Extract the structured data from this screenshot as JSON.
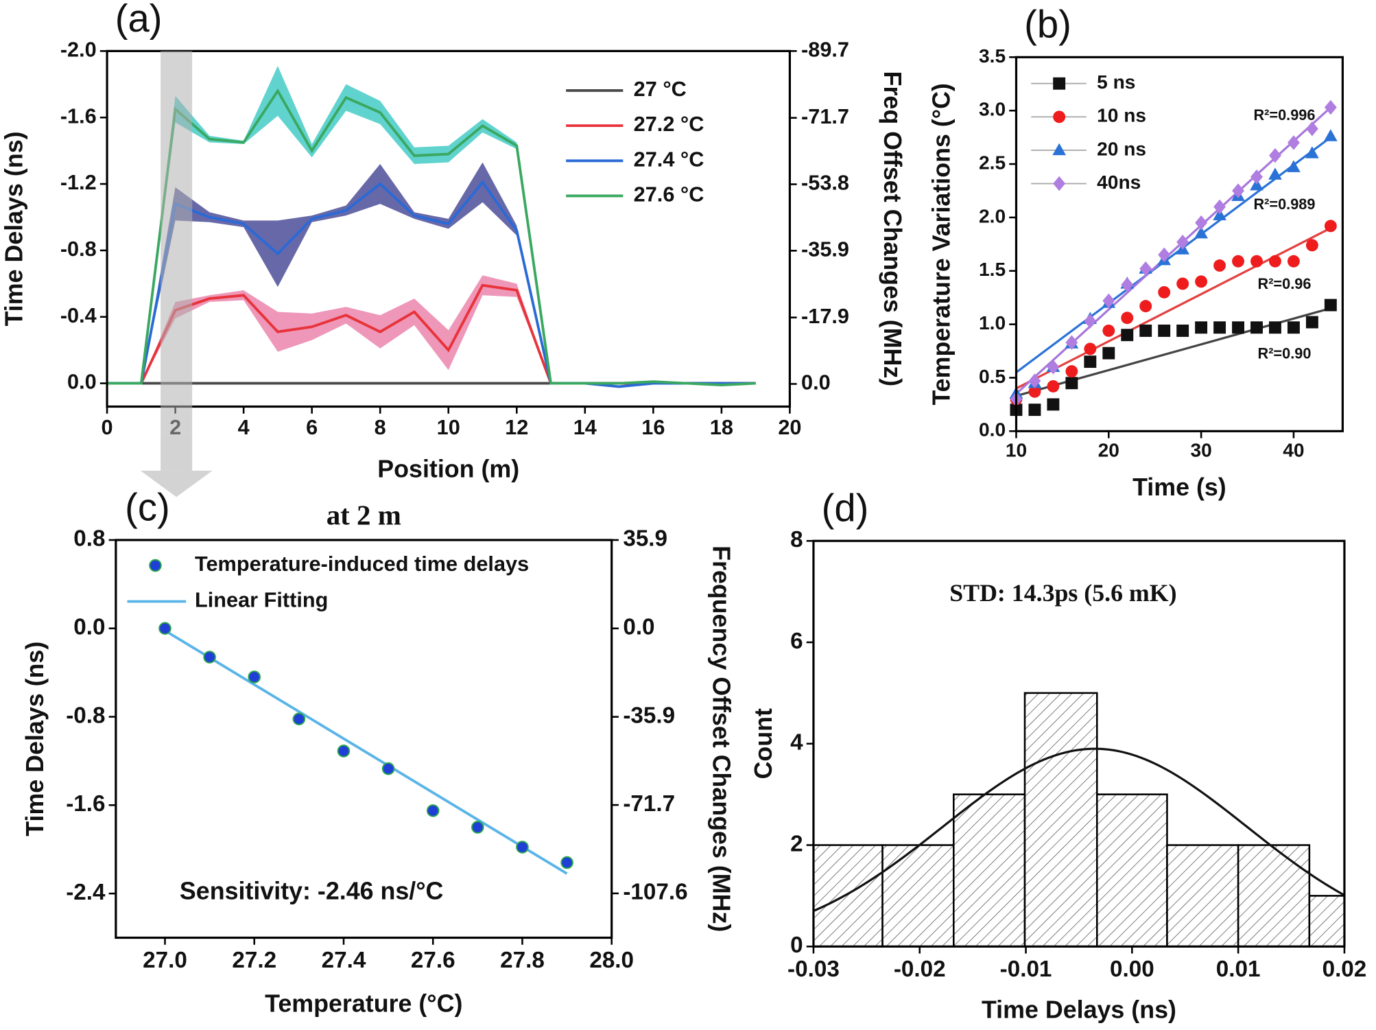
{
  "chart_data": [
    {
      "type": "line",
      "panel_label": "(a)",
      "xlabel": "Position (m)",
      "ylabel": "Time Delays (ns)",
      "y2label": "Freq Offset Changes (MHz)",
      "x": [
        0,
        1,
        2,
        3,
        4,
        5,
        6,
        7,
        8,
        9,
        10,
        11,
        12,
        13,
        14,
        15,
        16,
        17,
        18,
        19
      ],
      "series": [
        {
          "name": "27 °C",
          "color": "#4a4a4a",
          "band_color": "#9a9a9a",
          "values": [
            0,
            0,
            0,
            0,
            0,
            0,
            0,
            0,
            0,
            0,
            0,
            0,
            0,
            0,
            0,
            0,
            0,
            0,
            0,
            0
          ],
          "errors": [
            0,
            0,
            0,
            0,
            0,
            0,
            0,
            0,
            0,
            0,
            0,
            0,
            0,
            0,
            0,
            0,
            0,
            0,
            0,
            0
          ]
        },
        {
          "name": "27.2 °C",
          "color": "#e8333a",
          "band_color": "#e874a2",
          "values": [
            0,
            0,
            -0.44,
            -0.51,
            -0.53,
            -0.31,
            -0.34,
            -0.41,
            -0.31,
            -0.43,
            -0.2,
            -0.59,
            -0.56,
            0,
            0,
            0,
            0,
            0,
            0,
            0
          ],
          "errors": [
            0,
            0,
            0.05,
            0.02,
            0.03,
            0.12,
            0.08,
            0.05,
            0.1,
            0.08,
            0.12,
            0.06,
            0.04,
            0,
            0,
            0,
            0,
            0,
            0,
            0
          ]
        },
        {
          "name": "27.4 °C",
          "color": "#2a6ad6",
          "band_color": "#34358a",
          "values": [
            0,
            0,
            -1.08,
            -1.0,
            -0.96,
            -0.78,
            -0.99,
            -1.04,
            -1.2,
            -1.01,
            -0.96,
            -1.21,
            -0.92,
            0,
            0,
            0.02,
            0,
            0,
            0,
            0
          ],
          "errors": [
            0,
            0,
            0.1,
            0.03,
            0.02,
            0.2,
            0.02,
            0.03,
            0.12,
            0.02,
            0.03,
            0.12,
            0.03,
            0,
            0,
            0,
            0,
            0,
            0,
            0
          ]
        },
        {
          "name": "27.6 °C",
          "color": "#3aa860",
          "band_color": "#2cc4bf",
          "values": [
            0,
            0,
            -1.65,
            -1.47,
            -1.45,
            -1.76,
            -1.4,
            -1.72,
            -1.63,
            -1.37,
            -1.38,
            -1.55,
            -1.43,
            0,
            0,
            0,
            -0.01,
            0,
            0.01,
            0
          ],
          "errors": [
            0,
            0,
            0.08,
            0.02,
            0.01,
            0.15,
            0.04,
            0.08,
            0.07,
            0.05,
            0.05,
            0.04,
            0.02,
            0,
            0,
            0,
            0,
            0,
            0,
            0
          ]
        }
      ],
      "xlim": [
        0,
        20
      ],
      "xticks": [
        0,
        2,
        4,
        6,
        8,
        10,
        12,
        14,
        16,
        18,
        20
      ],
      "ylim": [
        0.14,
        -2.0
      ],
      "yticks": [
        {
          "value": 0,
          "label": "0.0"
        },
        -0.4,
        -0.8,
        -1.2,
        -1.6,
        {
          "value": -2.0,
          "label": "-2.0"
        }
      ],
      "y2lim": [
        6.1,
        -89.7
      ],
      "y2ticks": [
        {
          "value": 0,
          "label": "0.0"
        },
        -17.9,
        -35.9,
        -53.8,
        -71.7,
        -89.7
      ],
      "legend": "upper right"
    },
    {
      "type": "scatter",
      "panel_label": "(b)",
      "xlabel": "Time (s)",
      "ylabel": "Temperature Variations (°C)",
      "x": [
        10,
        12,
        14,
        16,
        18,
        20,
        22,
        24,
        26,
        28,
        30,
        32,
        34,
        36,
        38,
        40,
        42,
        44
      ],
      "fit_x": [
        10,
        44
      ],
      "series": [
        {
          "name": "5 ns",
          "color": "#111111",
          "fit_color": "#444444",
          "marker": "square",
          "annotation": "R²=0.90",
          "values": [
            0.2,
            0.2,
            0.25,
            0.45,
            0.65,
            0.73,
            0.9,
            0.94,
            0.94,
            0.94,
            0.97,
            0.97,
            0.97,
            0.97,
            0.97,
            0.97,
            1.02,
            1.18
          ],
          "fit": [
            0.33,
            1.15
          ]
        },
        {
          "name": "10 ns",
          "color": "#ee1c1c",
          "fit_color": "#e34040",
          "marker": "circle",
          "annotation": "R²=0.96",
          "values": [
            0.3,
            0.37,
            0.42,
            0.56,
            0.77,
            0.94,
            1.06,
            1.17,
            1.3,
            1.38,
            1.4,
            1.55,
            1.59,
            1.59,
            1.59,
            1.59,
            1.74,
            1.92
          ],
          "fit": [
            0.4,
            1.9
          ]
        },
        {
          "name": "20 ns",
          "color": "#2a72d6",
          "fit_color": "#2a72d6",
          "marker": "triangle",
          "annotation": "R²=0.989",
          "values": [
            0.35,
            0.45,
            0.6,
            0.82,
            1.05,
            1.2,
            1.38,
            1.52,
            1.6,
            1.7,
            1.85,
            2.02,
            2.2,
            2.3,
            2.4,
            2.47,
            2.6,
            2.76
          ],
          "fit": [
            0.55,
            2.75
          ]
        },
        {
          "name": "40ns",
          "color": "#b07de0",
          "fit_color": "#a776dc",
          "marker": "diamond",
          "annotation": "R²=0.996",
          "values": [
            0.3,
            0.47,
            0.6,
            0.83,
            1.03,
            1.22,
            1.37,
            1.52,
            1.65,
            1.77,
            1.95,
            2.1,
            2.25,
            2.38,
            2.58,
            2.7,
            2.83,
            3.03
          ],
          "fit": [
            0.35,
            3.03
          ]
        }
      ],
      "xlim": [
        10,
        45.3
      ],
      "xticks": [
        10,
        20,
        30,
        40
      ],
      "ylim": [
        0,
        3.5
      ],
      "yticks": [
        {
          "value": 0,
          "label": "0.0"
        },
        0.5,
        {
          "value": 1,
          "label": "1.0"
        },
        1.5,
        {
          "value": 2,
          "label": "2.0"
        },
        2.5,
        {
          "value": 3,
          "label": "3.0"
        },
        3.5
      ],
      "legend": "upper left"
    },
    {
      "type": "scatter",
      "panel_label": "(c)",
      "title": "at 2 m",
      "xlabel": "Temperature (°C)",
      "ylabel": "Time Delays (ns)",
      "y2label": "Frequency Offset Changes (MHz)",
      "annotation": "Sensitivity: -2.46 ns/°C",
      "annotation_color": "#5ab4e8",
      "series": [
        {
          "name": "Temperature-induced time delays",
          "color": "#1f3fd6",
          "marker": "circle",
          "x": [
            27.0,
            27.1,
            27.2,
            27.3,
            27.4,
            27.5,
            27.6,
            27.7,
            27.8,
            27.9
          ],
          "values": [
            0.0,
            -0.26,
            -0.44,
            -0.82,
            -1.11,
            -1.27,
            -1.65,
            -1.8,
            -1.98,
            -2.12
          ]
        },
        {
          "name": "Linear Fitting",
          "color": "#5ab4e8",
          "x": [
            27.0,
            27.9
          ],
          "values": [
            -0.02,
            -2.22
          ]
        }
      ],
      "xlim": [
        26.89,
        28.0
      ],
      "xticks": [
        {
          "value": 27,
          "label": "27.0"
        },
        27.2,
        27.4,
        27.6,
        27.8,
        {
          "value": 28,
          "label": "28.0"
        }
      ],
      "ylim": [
        -2.8,
        0.8
      ],
      "yticks": [
        -2.4,
        -1.6,
        -0.8,
        {
          "value": 0,
          "label": "0.0"
        },
        0.8
      ],
      "y2lim": [
        -125.6,
        35.9
      ],
      "y2ticks": [
        -107.6,
        -71.7,
        -35.9,
        {
          "value": 0,
          "label": "0.0"
        },
        35.9
      ],
      "legend": "upper left"
    },
    {
      "type": "histogram",
      "panel_label": "(d)",
      "xlabel": "Time Delays (ns)",
      "ylabel": "Count",
      "annotation": "STD: 14.3ps (5.6 mK)",
      "bins": [
        -0.03,
        -0.0235,
        -0.0168,
        -0.0101,
        -0.0033,
        0.0033,
        0.01,
        0.0167,
        0.02
      ],
      "values": [
        2,
        2,
        3,
        5,
        3,
        2,
        2,
        1
      ],
      "fit": {
        "mean": -0.0035,
        "std": 0.0143,
        "peak": 3.9
      },
      "xlim": [
        -0.03,
        0.02
      ],
      "xticks": [
        -0.03,
        -0.02,
        -0.01,
        {
          "value": 0,
          "label": "0.00"
        },
        0.01,
        0.02
      ],
      "ylim": [
        0,
        8
      ],
      "yticks": [
        0,
        2,
        4,
        6,
        8
      ]
    }
  ]
}
